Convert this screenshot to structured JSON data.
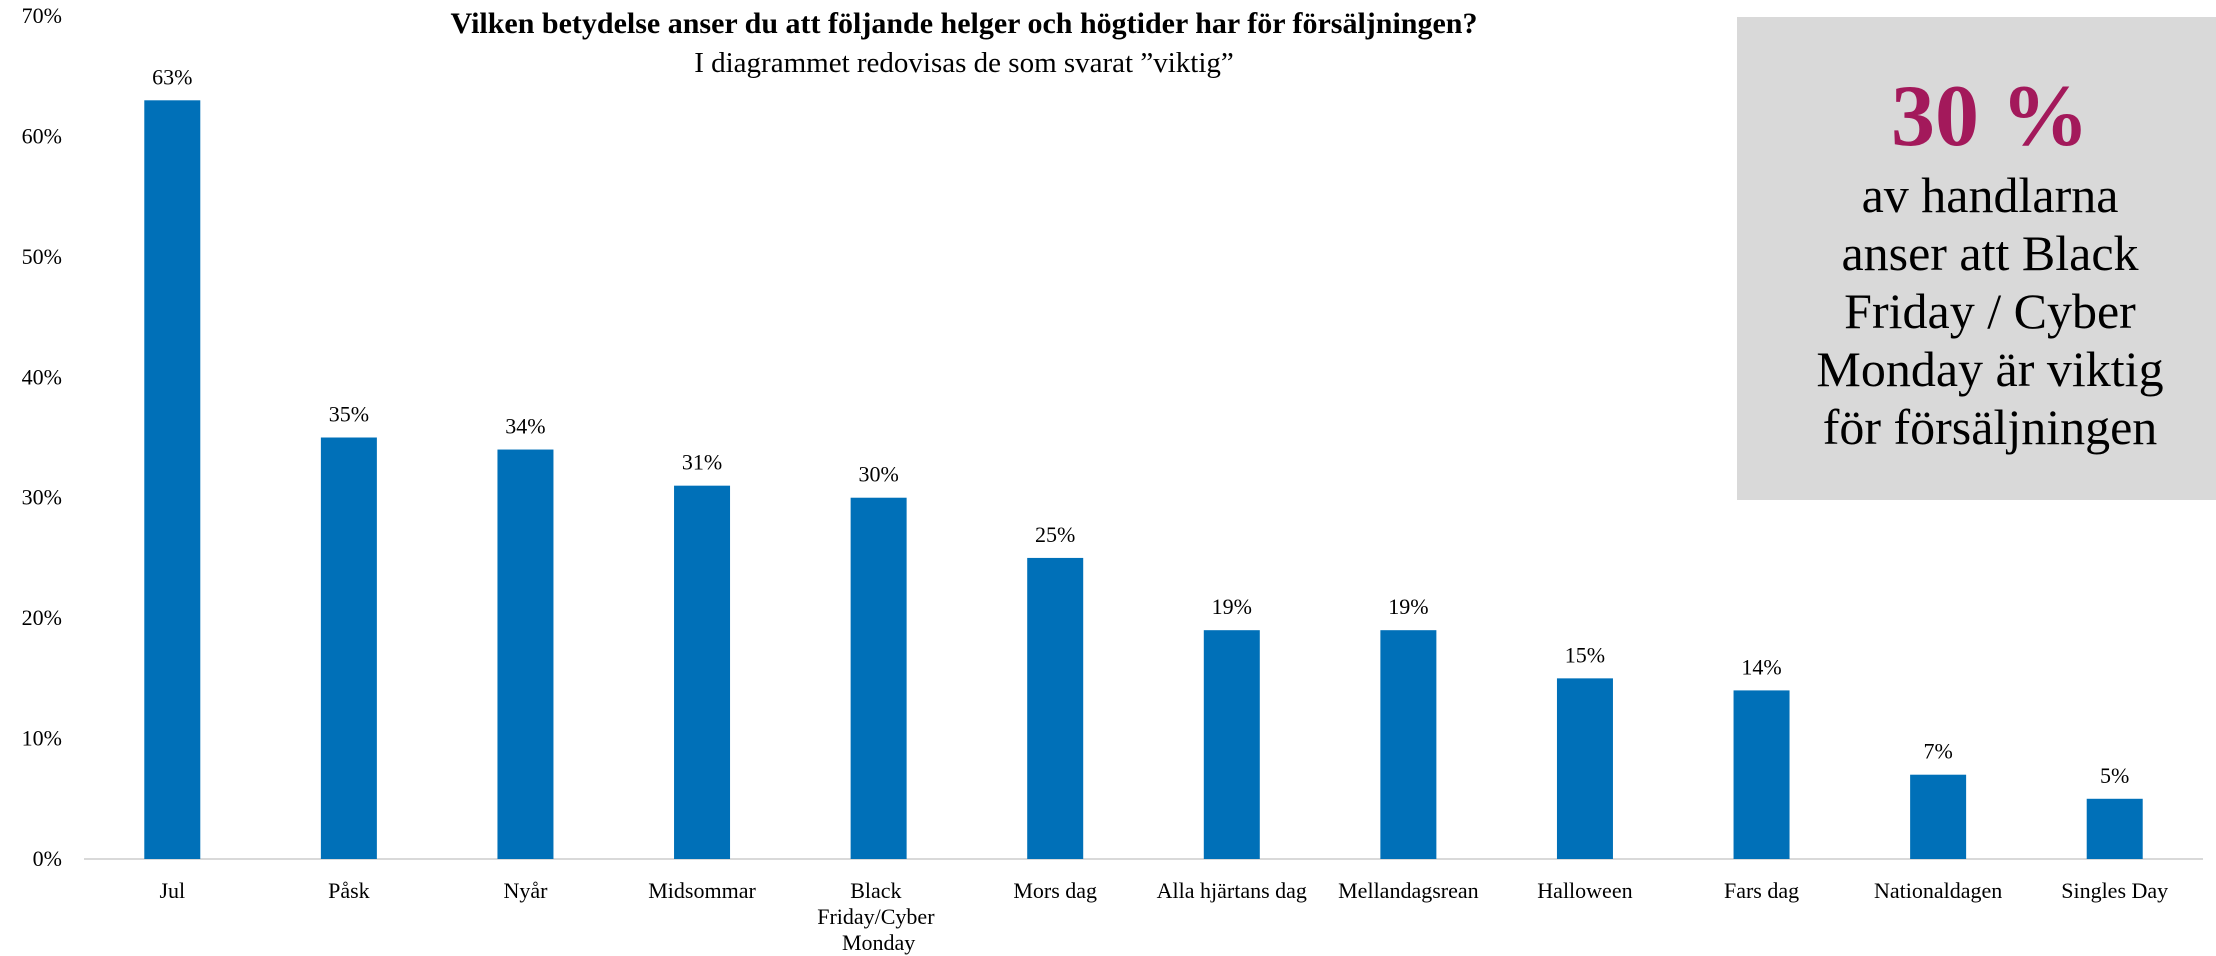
{
  "chart_data": {
    "type": "bar",
    "title": "Vilken betydelse anser du att följande helger och högtider har för försäljningen?",
    "subtitle": "I diagrammet redovisas de som svarat ”viktig”",
    "categories": [
      "Jul",
      "Påsk",
      "Nyår",
      "Midsommar",
      "Black Friday/Cyber Monday",
      "Mors dag",
      "Alla hjärtans dag",
      "Mellandagsrean",
      "Halloween",
      "Fars dag",
      "Nationaldagen",
      "Singles Day"
    ],
    "values": [
      63,
      35,
      34,
      31,
      30,
      25,
      19,
      19,
      15,
      14,
      7,
      5
    ],
    "value_labels": [
      "63%",
      "35%",
      "34%",
      "31%",
      "30%",
      "25%",
      "19%",
      "19%",
      "15%",
      "14%",
      "7%",
      "5%"
    ],
    "color": "#0070b8",
    "ylim": [
      0,
      70
    ],
    "yticks": [
      {
        "value": 0,
        "label": "0%"
      },
      {
        "value": 10,
        "label": "10%"
      },
      {
        "value": 20,
        "label": "20%"
      },
      {
        "value": 30,
        "label": "30%"
      },
      {
        "value": 40,
        "label": "40%"
      },
      {
        "value": 50,
        "label": "50%"
      },
      {
        "value": 60,
        "label": "60%"
      },
      {
        "value": 70,
        "label": "70%"
      }
    ],
    "grid": false,
    "callout": {
      "headline": "30 %",
      "lines": [
        "av handlarna",
        "anser att Black",
        "Friday / Cyber",
        "Monday är viktig",
        "för försäljningen"
      ]
    }
  }
}
